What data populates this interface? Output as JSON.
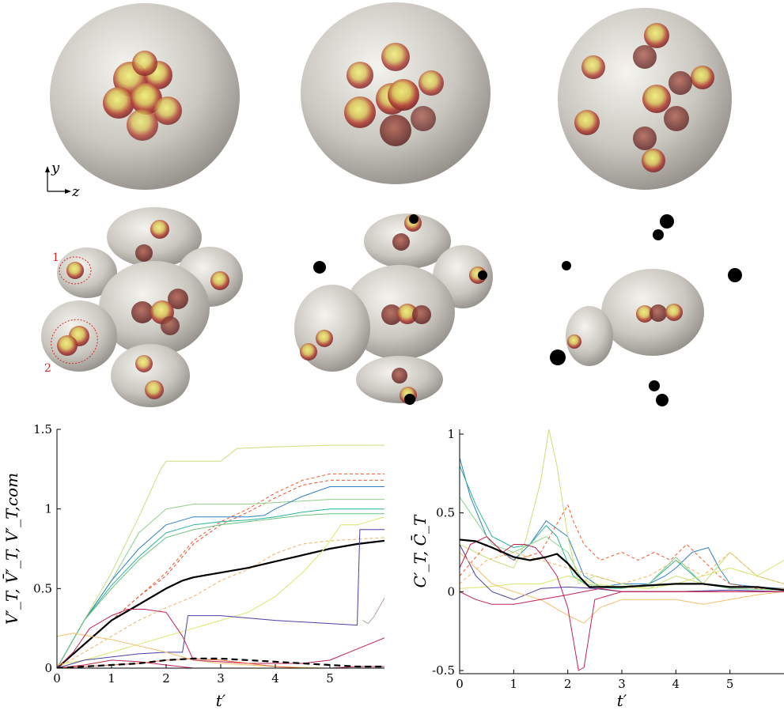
{
  "snapshots": {
    "orientation": {
      "y_label": "y",
      "z_label": "z"
    },
    "markers": [
      "1",
      "2"
    ]
  },
  "chart_data": [
    {
      "type": "line",
      "xlabel": "t′",
      "ylabel": "V′_T,  V̄′_T,  V′_T,com",
      "xlim": [
        0,
        6
      ],
      "ylim": [
        0,
        1.5
      ],
      "xticks": [
        "0",
        "1",
        "2",
        "3",
        "4",
        "5"
      ],
      "yticks": [
        "0",
        "0.5",
        "1",
        "1.5"
      ],
      "series": [
        {
          "color": "#c8e07a",
          "style": "solid",
          "x": [
            0,
            0.5,
            1,
            1.5,
            1.9,
            2.0,
            2.2,
            3.0,
            3.3,
            4,
            5,
            6
          ],
          "y": [
            0,
            0.3,
            0.6,
            0.95,
            1.25,
            1.3,
            1.3,
            1.3,
            1.38,
            1.39,
            1.4,
            1.4
          ]
        },
        {
          "color": "#f05a2a",
          "style": "dashed",
          "x": [
            0,
            0.5,
            1,
            1.5,
            2,
            2.5,
            3,
            3.5,
            4,
            4.5,
            5,
            6
          ],
          "y": [
            0,
            0.15,
            0.3,
            0.45,
            0.6,
            0.8,
            0.92,
            1.0,
            1.1,
            1.18,
            1.22,
            1.22
          ]
        },
        {
          "color": "#e8502a",
          "style": "dashed",
          "x": [
            0,
            0.5,
            1,
            1.5,
            2,
            2.5,
            3,
            3.5,
            4,
            4.5,
            5,
            6
          ],
          "y": [
            0,
            0.15,
            0.3,
            0.45,
            0.58,
            0.78,
            0.9,
            0.98,
            1.07,
            1.15,
            1.18,
            1.18
          ]
        },
        {
          "color": "#8dd08d",
          "style": "solid",
          "x": [
            0,
            0.5,
            1,
            1.5,
            2.0,
            2.5,
            3,
            3.5,
            4,
            4.5,
            5,
            6
          ],
          "y": [
            0,
            0.3,
            0.55,
            0.85,
            1.0,
            1.03,
            1.03,
            1.03,
            1.04,
            1.05,
            1.06,
            1.06
          ]
        },
        {
          "color": "#2f7fc1",
          "style": "solid",
          "x": [
            0,
            0.5,
            1,
            1.5,
            2,
            2.5,
            3,
            3.5,
            3.8,
            4,
            4.5,
            5,
            6
          ],
          "y": [
            0,
            0.3,
            0.55,
            0.75,
            0.9,
            0.95,
            0.95,
            0.95,
            0.96,
            1.0,
            1.08,
            1.14,
            1.14
          ]
        },
        {
          "color": "#27b59a",
          "style": "solid",
          "x": [
            0,
            0.5,
            1,
            1.5,
            2,
            2.5,
            3,
            3.5,
            4,
            4.5,
            5,
            6
          ],
          "y": [
            0,
            0.3,
            0.52,
            0.7,
            0.85,
            0.9,
            0.92,
            0.93,
            0.95,
            0.98,
            1.0,
            1.0
          ]
        },
        {
          "color": "#6cc27a",
          "style": "solid",
          "x": [
            0,
            0.5,
            1,
            1.5,
            2,
            2.5,
            3,
            3.5,
            4,
            4.5,
            5,
            6
          ],
          "y": [
            0,
            0.3,
            0.5,
            0.68,
            0.82,
            0.87,
            0.9,
            0.92,
            0.94,
            0.96,
            0.97,
            0.97
          ]
        },
        {
          "color": "#f0b35a",
          "style": "dashed",
          "x": [
            0,
            0.5,
            1,
            1.5,
            2,
            2.5,
            3,
            3.5,
            4,
            4.5,
            5,
            6
          ],
          "y": [
            0,
            0.1,
            0.2,
            0.3,
            0.38,
            0.45,
            0.55,
            0.62,
            0.72,
            0.78,
            0.8,
            0.82
          ]
        },
        {
          "color": "#000000",
          "style": "solid",
          "thick": true,
          "x": [
            0,
            0.5,
            1,
            1.5,
            2,
            2.3,
            2.5,
            3,
            3.5,
            4,
            4.5,
            5,
            5.5,
            6
          ],
          "y": [
            0,
            0.15,
            0.3,
            0.4,
            0.5,
            0.55,
            0.57,
            0.6,
            0.63,
            0.67,
            0.71,
            0.75,
            0.78,
            0.8
          ]
        },
        {
          "color": "#dde66a",
          "style": "solid",
          "x": [
            0,
            0.5,
            1,
            1.5,
            2,
            2.5,
            3,
            3.5,
            4,
            4.5,
            4.9,
            5.0,
            5.2,
            5.5,
            6
          ],
          "y": [
            0.02,
            0.05,
            0.1,
            0.15,
            0.2,
            0.25,
            0.3,
            0.35,
            0.45,
            0.6,
            0.75,
            0.8,
            0.9,
            0.9,
            0.95
          ]
        },
        {
          "color": "#4a3fa8",
          "style": "solid",
          "x": [
            0,
            0.5,
            1,
            1.5,
            2,
            2.3,
            2.4,
            3,
            4,
            5,
            5.5,
            5.55,
            6
          ],
          "y": [
            0,
            0.05,
            0.07,
            0.09,
            0.1,
            0.1,
            0.33,
            0.33,
            0.3,
            0.28,
            0.27,
            0.87,
            0.87
          ]
        },
        {
          "color": "#b5a2a6",
          "style": "solid",
          "x": [
            5.6,
            5.7,
            5.8,
            5.9,
            6
          ],
          "y": [
            0.3,
            0.28,
            0.32,
            0.38,
            0.44
          ]
        },
        {
          "color": "#f4c06a",
          "style": "solid",
          "x": [
            0,
            0.3,
            0.6,
            1,
            1.5,
            2,
            2.5,
            3,
            3.5,
            4,
            4.5,
            5,
            6
          ],
          "y": [
            0.2,
            0.22,
            0.2,
            0.18,
            0.14,
            0.1,
            0.05,
            0.03,
            0.02,
            0.01,
            0.005,
            0,
            0
          ]
        },
        {
          "color": "#c02050",
          "style": "solid",
          "x": [
            0,
            0.3,
            0.6,
            1,
            1.3,
            1.6,
            2.0,
            2.3,
            2.5,
            3,
            3.5,
            4,
            4.5,
            5,
            5.5,
            6
          ],
          "y": [
            0,
            0.1,
            0.25,
            0.33,
            0.37,
            0.37,
            0.35,
            0.2,
            0.05,
            0.04,
            0.03,
            0.03,
            0.03,
            0.05,
            0.12,
            0.19
          ]
        },
        {
          "color": "#c02050",
          "style": "solid",
          "x": [
            0,
            0.5,
            1,
            1.5,
            2,
            2.5,
            3,
            3.5,
            4,
            4.5,
            5,
            5.5,
            6
          ],
          "y": [
            0,
            0.02,
            0.05,
            0.04,
            0.02,
            0,
            0,
            0,
            0,
            0,
            0,
            0.01,
            0.01
          ]
        },
        {
          "color": "#e96a3a",
          "style": "solid",
          "x": [
            0,
            0.5,
            1,
            1.5,
            2,
            2.5,
            3,
            3.5,
            4,
            4.5,
            5,
            5.5,
            6
          ],
          "y": [
            0,
            0.01,
            0.02,
            0.03,
            0.05,
            0.06,
            0.05,
            0.03,
            0.01,
            0,
            0,
            0,
            0
          ]
        },
        {
          "color": "#000000",
          "style": "dashed",
          "thick": true,
          "x": [
            0,
            0.5,
            1,
            1.5,
            2,
            2.5,
            3,
            3.5,
            4,
            4.5,
            5,
            5.5,
            6
          ],
          "y": [
            0,
            0.01,
            0.02,
            0.03,
            0.05,
            0.06,
            0.06,
            0.05,
            0.04,
            0.03,
            0.02,
            0.01,
            0.01
          ]
        }
      ]
    },
    {
      "type": "line",
      "xlabel": "t′",
      "ylabel": "C′_T,  C̄_T",
      "xlim": [
        0,
        6
      ],
      "ylim": [
        -0.52,
        1.03
      ],
      "xticks": [
        "0",
        "1",
        "2",
        "3",
        "4",
        "5"
      ],
      "yticks": [
        "-0.5",
        "0",
        "0.5",
        "1"
      ],
      "series": [
        {
          "color": "#2f7fc1",
          "style": "solid",
          "x": [
            0,
            0.2,
            0.5,
            0.8,
            1,
            1.3,
            1.6,
            2,
            2.3,
            2.6,
            3,
            3.5,
            3.8,
            4,
            4.3,
            4.6,
            4.8,
            5,
            5.5,
            6
          ],
          "y": [
            0.85,
            0.6,
            0.35,
            0.25,
            0.2,
            0.3,
            0.45,
            0.35,
            0.1,
            0.03,
            0.05,
            0.05,
            0.1,
            0.15,
            0.25,
            0.28,
            0.15,
            0.05,
            0.03,
            0.02
          ]
        },
        {
          "color": "#27b59a",
          "style": "solid",
          "x": [
            0,
            0.3,
            0.6,
            1,
            1.3,
            1.6,
            1.8,
            2.1,
            2.4,
            3,
            3.5,
            4,
            4.5,
            5,
            6
          ],
          "y": [
            0.8,
            0.55,
            0.35,
            0.28,
            0.3,
            0.42,
            0.35,
            0.1,
            0.03,
            0.02,
            0.05,
            0.2,
            0.05,
            0.02,
            0.01
          ]
        },
        {
          "color": "#8dd08d",
          "style": "solid",
          "x": [
            0,
            0.3,
            0.6,
            1,
            1.3,
            1.6,
            2,
            2.3,
            3,
            3.5,
            4,
            4.5,
            5,
            6
          ],
          "y": [
            0.6,
            0.45,
            0.3,
            0.25,
            0.3,
            0.35,
            0.25,
            0.05,
            0.02,
            0.05,
            0.22,
            0.05,
            0.02,
            0.01
          ]
        },
        {
          "color": "#c8e07a",
          "style": "solid",
          "x": [
            0,
            0.3,
            0.6,
            1,
            1.2,
            1.5,
            1.65,
            1.8,
            2,
            2.2,
            2.5,
            3,
            3.5,
            4,
            4.5,
            5,
            5.5,
            6
          ],
          "y": [
            0.3,
            0.25,
            0.2,
            0.15,
            0.3,
            0.7,
            1.03,
            0.8,
            0.35,
            0.05,
            0.1,
            0.05,
            0.02,
            0.1,
            0.05,
            0.25,
            0.1,
            0.05
          ]
        },
        {
          "color": "#f05a2a",
          "style": "dashed",
          "x": [
            0,
            0.5,
            1,
            1.5,
            2,
            2.1,
            2.3,
            2.6,
            3,
            3.3,
            3.6,
            3.9,
            4.2,
            4.5,
            4.8,
            5,
            5.5,
            6
          ],
          "y": [
            0.1,
            0.3,
            0.2,
            0.25,
            0.55,
            0.45,
            0.3,
            0.2,
            0.25,
            0.2,
            0.25,
            0.2,
            0.3,
            0.2,
            0.1,
            0.05,
            0.02,
            0.02
          ]
        },
        {
          "color": "#f0b35a",
          "style": "dashed",
          "x": [
            0,
            0.5,
            1,
            1.5,
            2,
            2.5,
            3,
            3.5,
            4,
            4.5,
            5,
            5.5,
            6
          ],
          "y": [
            0.05,
            0.2,
            0.25,
            0.2,
            0.15,
            0.1,
            0.05,
            0.1,
            0.2,
            0.1,
            0.25,
            0.1,
            0.05
          ]
        },
        {
          "color": "#dde66a",
          "style": "solid",
          "x": [
            0,
            0.5,
            1,
            1.5,
            2,
            2.5,
            3,
            3.5,
            4,
            4.5,
            5,
            5.5,
            6
          ],
          "y": [
            0.02,
            0.03,
            0.05,
            0.05,
            0.1,
            0.05,
            0.03,
            0.02,
            0.05,
            0.1,
            0.15,
            0.1,
            0.2
          ]
        },
        {
          "color": "#4a3fa8",
          "style": "solid",
          "x": [
            0,
            0.3,
            0.6,
            1,
            1.5,
            2,
            2.5,
            3,
            4,
            5,
            6
          ],
          "y": [
            0.3,
            0.1,
            0.0,
            -0.05,
            0.02,
            0.03,
            0.02,
            0.0,
            0.0,
            0.01,
            0.0
          ]
        },
        {
          "color": "#f4c06a",
          "style": "solid",
          "x": [
            0,
            0.3,
            0.6,
            1,
            1.5,
            2,
            2.3,
            2.6,
            3,
            3.5,
            4,
            4.5,
            5,
            5.5,
            6
          ],
          "y": [
            0.25,
            0.15,
            0.05,
            0.0,
            -0.05,
            -0.15,
            -0.2,
            -0.1,
            -0.05,
            -0.05,
            -0.05,
            -0.08,
            -0.05,
            -0.02,
            0.0
          ]
        },
        {
          "color": "#c02050",
          "style": "solid",
          "x": [
            0,
            0.2,
            0.5,
            0.8,
            1,
            1.2,
            1.4,
            1.6,
            1.8,
            2,
            2.1,
            2.2,
            2.3,
            2.5,
            3,
            4,
            5,
            6
          ],
          "y": [
            0.15,
            0.3,
            0.35,
            0.25,
            0.3,
            0.3,
            0.28,
            0.2,
            0.1,
            -0.1,
            -0.3,
            -0.5,
            -0.48,
            -0.05,
            0.0,
            0.0,
            0.0,
            0.0
          ]
        },
        {
          "color": "#c02050",
          "style": "solid",
          "x": [
            0,
            0.3,
            0.6,
            1,
            1.5,
            2,
            2.3,
            2.6,
            3,
            4,
            5,
            6
          ],
          "y": [
            0.0,
            -0.05,
            -0.08,
            -0.08,
            -0.05,
            -0.02,
            0.0,
            0.02,
            0.0,
            0.0,
            0.0,
            0.0
          ]
        },
        {
          "color": "#000000",
          "style": "solid",
          "thick": true,
          "x": [
            0,
            0.3,
            0.6,
            1,
            1.3,
            1.6,
            1.8,
            2,
            2.2,
            2.4,
            3,
            3.5,
            4,
            4.5,
            5,
            5.5,
            6
          ],
          "y": [
            0.33,
            0.32,
            0.28,
            0.22,
            0.2,
            0.22,
            0.24,
            0.18,
            0.1,
            0.03,
            0.03,
            0.04,
            0.05,
            0.05,
            0.03,
            0.03,
            0.01
          ]
        }
      ]
    }
  ]
}
